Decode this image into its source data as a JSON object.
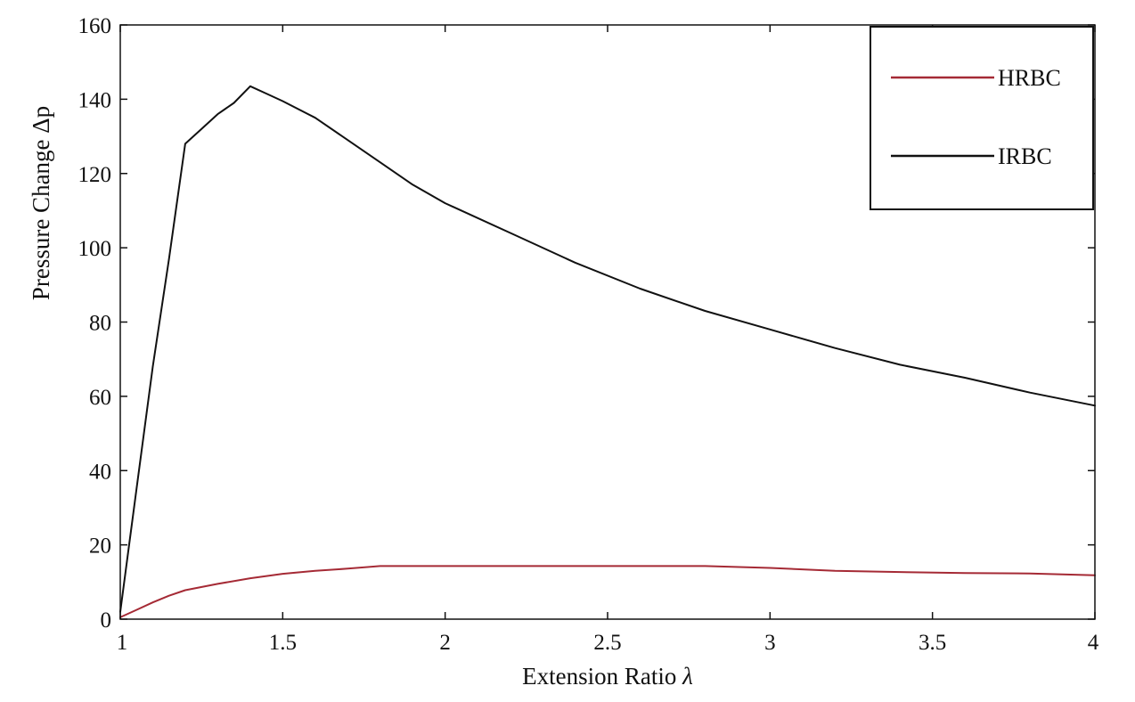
{
  "chart_data": {
    "type": "line",
    "title": "",
    "xlabel": "Extension Ratio",
    "xlabel_symbol": "λ",
    "ylabel": "Pressure Change",
    "ylabel_symbol": "Δp",
    "xlim": [
      1,
      4
    ],
    "ylim": [
      0,
      160
    ],
    "xticks": [
      1,
      1.5,
      2,
      2.5,
      3,
      3.5,
      4
    ],
    "xtick_labels": [
      "1",
      "1.5",
      "2",
      "2.5",
      "3",
      "3.5",
      "4"
    ],
    "yticks": [
      0,
      20,
      40,
      60,
      80,
      100,
      120,
      140,
      160
    ],
    "ytick_labels": [
      "0",
      "20",
      "40",
      "60",
      "80",
      "100",
      "120",
      "140",
      "160"
    ],
    "grid": false,
    "legend_position": "top-right",
    "series": [
      {
        "name": "HRBC",
        "color": "#a52a35",
        "x": [
          1,
          1.05,
          1.1,
          1.15,
          1.2,
          1.3,
          1.4,
          1.5,
          1.6,
          1.7,
          1.8,
          2,
          2.2,
          2.4,
          2.6,
          2.8,
          3,
          3.2,
          3.4,
          3.6,
          3.8,
          4
        ],
        "y": [
          0.5,
          2.5,
          4.5,
          6.3,
          7.8,
          9.5,
          11,
          12.2,
          13,
          13.6,
          14.3,
          14.3,
          14.3,
          14.3,
          14.3,
          14.3,
          13.8,
          13,
          12.7,
          12.4,
          12.3,
          11.8
        ]
      },
      {
        "name": "IRBC",
        "color": "#111111",
        "x": [
          1,
          1.05,
          1.1,
          1.15,
          1.2,
          1.25,
          1.3,
          1.35,
          1.4,
          1.45,
          1.5,
          1.6,
          1.7,
          1.8,
          1.9,
          2,
          2.2,
          2.4,
          2.6,
          2.8,
          3,
          3.2,
          3.4,
          3.6,
          3.8,
          4
        ],
        "y": [
          2,
          35,
          68,
          97,
          128,
          132,
          136,
          139,
          143.5,
          141.5,
          139.5,
          135,
          129,
          123,
          117,
          112,
          104,
          96,
          89,
          83,
          78,
          73,
          68.5,
          65,
          61,
          57.5
        ]
      }
    ]
  }
}
